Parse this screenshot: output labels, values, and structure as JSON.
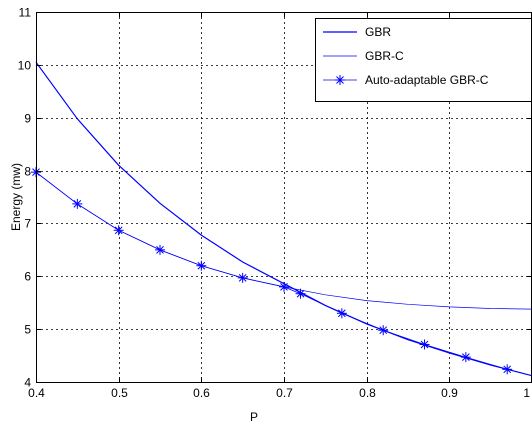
{
  "chart_data": {
    "type": "line",
    "title": "",
    "xlabel": "P",
    "ylabel": "Energy (mw)",
    "xlim": [
      0.4,
      1.0
    ],
    "ylim": [
      4,
      11
    ],
    "x_ticks": [
      "0.4",
      "0.5",
      "0.6",
      "0.7",
      "0.8",
      "0.9",
      "1"
    ],
    "y_ticks": [
      "4",
      "5",
      "6",
      "7",
      "8",
      "9",
      "10",
      "11"
    ],
    "grid": true,
    "legend_position": "top-right",
    "series": [
      {
        "name": "GBR",
        "color": "#0000ff",
        "style": "solid",
        "x": [
          0.4,
          0.45,
          0.5,
          0.55,
          0.6,
          0.65,
          0.7,
          0.75,
          0.8,
          0.85,
          0.9,
          0.95,
          1.0
        ],
        "y": [
          10.05,
          8.98,
          8.1,
          7.38,
          6.78,
          6.27,
          5.86,
          5.45,
          5.1,
          4.8,
          4.55,
          4.32,
          4.12
        ]
      },
      {
        "name": "GBR-C",
        "color": "#0000ff",
        "style": "thin",
        "x": [
          0.4,
          0.45,
          0.5,
          0.55,
          0.6,
          0.65,
          0.7,
          0.75,
          0.8,
          0.85,
          0.9,
          0.95,
          1.0
        ],
        "y": [
          7.97,
          7.37,
          6.87,
          6.5,
          6.2,
          5.97,
          5.8,
          5.65,
          5.54,
          5.47,
          5.42,
          5.39,
          5.38
        ]
      },
      {
        "name": "Auto-adaptable GBR-C",
        "color": "#0000ff",
        "style": "markers",
        "marker": "star",
        "x": [
          0.4,
          0.45,
          0.5,
          0.55,
          0.6,
          0.65,
          0.7,
          0.72,
          0.77,
          0.82,
          0.87,
          0.92,
          0.97
        ],
        "y": [
          7.97,
          7.37,
          6.87,
          6.5,
          6.2,
          5.97,
          5.8,
          5.67,
          5.3,
          4.98,
          4.71,
          4.47,
          4.24
        ]
      }
    ]
  }
}
